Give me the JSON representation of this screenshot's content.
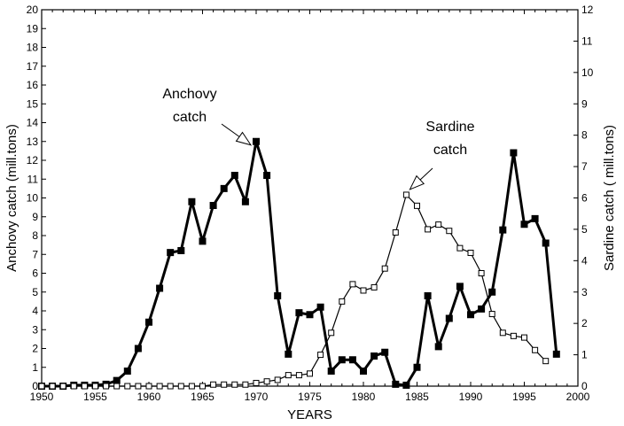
{
  "chart_data": {
    "type": "line",
    "title": "",
    "xlabel": "YEARS",
    "ylabel_left": "Anchovy catch (mill.tons)",
    "ylabel_right": "Sardine catch ( mill.tons)",
    "xlim": [
      1950,
      2000
    ],
    "ylim_left": [
      0,
      20
    ],
    "ylim_right": [
      0,
      12
    ],
    "x_ticks": [
      "1950",
      "1955",
      "1960",
      "1965",
      "1970",
      "1975",
      "1980",
      "1985",
      "1990",
      "1995",
      "2000"
    ],
    "y_ticks_left": [
      "0",
      "1",
      "2",
      "3",
      "4",
      "5",
      "6",
      "7",
      "8",
      "9",
      "10",
      "11",
      "12",
      "13",
      "14",
      "15",
      "16",
      "17",
      "18",
      "19",
      "20"
    ],
    "y_ticks_right": [
      "0",
      "1",
      "2",
      "3",
      "4",
      "5",
      "6",
      "7",
      "8",
      "9",
      "10",
      "11",
      "12"
    ],
    "grid": false,
    "legend": "none",
    "series": [
      {
        "key": "anchovy",
        "axis": "left",
        "marker": "filled-square",
        "line": "thick",
        "color": "#000000",
        "x": [
          1950,
          1951,
          1952,
          1953,
          1954,
          1955,
          1956,
          1957,
          1958,
          1959,
          1960,
          1961,
          1962,
          1963,
          1964,
          1965,
          1966,
          1967,
          1968,
          1969,
          1970,
          1971,
          1972,
          1973,
          1974,
          1975,
          1976,
          1977,
          1978,
          1979,
          1980,
          1981,
          1982,
          1983,
          1984,
          1985,
          1986,
          1987,
          1988,
          1989,
          1990,
          1991,
          1992,
          1993,
          1994,
          1995,
          1996,
          1997,
          1998
        ],
        "values": [
          0.0,
          0.0,
          0.0,
          0.05,
          0.05,
          0.05,
          0.1,
          0.3,
          0.8,
          2.0,
          3.4,
          5.2,
          7.1,
          7.2,
          9.8,
          7.7,
          9.6,
          10.5,
          11.2,
          9.8,
          13.0,
          11.2,
          4.8,
          1.7,
          3.9,
          3.8,
          4.2,
          0.8,
          1.4,
          1.4,
          0.8,
          1.6,
          1.8,
          0.1,
          0.05,
          1.0,
          4.8,
          2.1,
          3.6,
          5.3,
          3.8,
          4.1,
          5.0,
          8.3,
          12.4,
          8.6,
          8.9,
          7.6,
          1.7
        ]
      },
      {
        "key": "sardine",
        "axis": "right",
        "marker": "open-square",
        "line": "thin",
        "color": "#000000",
        "x": [
          1950,
          1951,
          1952,
          1953,
          1954,
          1955,
          1956,
          1957,
          1958,
          1959,
          1960,
          1961,
          1962,
          1963,
          1964,
          1965,
          1966,
          1967,
          1968,
          1969,
          1970,
          1971,
          1972,
          1973,
          1974,
          1975,
          1976,
          1977,
          1978,
          1979,
          1980,
          1981,
          1982,
          1983,
          1984,
          1985,
          1986,
          1987,
          1988,
          1989,
          1990,
          1991,
          1992,
          1993,
          1994,
          1995,
          1996,
          1997
        ],
        "values": [
          0.0,
          0.0,
          0.0,
          0.0,
          0.0,
          0.0,
          0.0,
          0.0,
          0.0,
          0.0,
          0.0,
          0.0,
          0.0,
          0.0,
          0.0,
          0.0,
          0.05,
          0.05,
          0.05,
          0.05,
          0.1,
          0.15,
          0.2,
          0.35,
          0.35,
          0.4,
          1.0,
          1.7,
          2.7,
          3.25,
          3.05,
          3.15,
          3.75,
          4.9,
          6.1,
          5.75,
          5.0,
          5.15,
          4.95,
          4.4,
          4.25,
          3.6,
          2.3,
          1.7,
          1.6,
          1.55,
          1.15,
          0.8
        ]
      }
    ],
    "annotations": [
      {
        "key": "anchovy_label",
        "lines": [
          "Anchovy",
          "catch"
        ],
        "points_to": {
          "x": 1970,
          "value": 13.0,
          "axis": "left"
        }
      },
      {
        "key": "sardine_label",
        "lines": [
          "Sardine",
          "catch"
        ],
        "points_to": {
          "x": 1984,
          "value": 6.1,
          "axis": "right"
        }
      }
    ]
  }
}
